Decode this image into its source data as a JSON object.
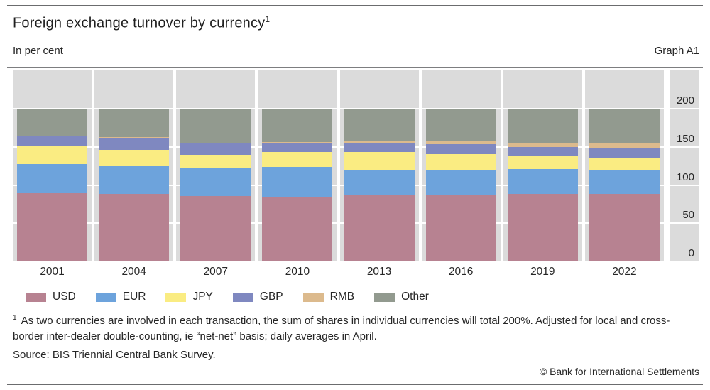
{
  "header": {
    "title": "Foreign exchange turnover by currency",
    "title_sup": "1",
    "subtitle": "In per cent",
    "graph_label": "Graph A1"
  },
  "chart_data": {
    "type": "bar",
    "stacked": true,
    "title": "Foreign exchange turnover by currency",
    "unit": "In per cent",
    "categories": [
      "2001",
      "2004",
      "2007",
      "2010",
      "2013",
      "2016",
      "2019",
      "2022"
    ],
    "series": [
      {
        "name": "USD",
        "color": "#b78291",
        "values": [
          89.9,
          88.0,
          85.6,
          84.9,
          87.0,
          87.6,
          88.3,
          88.5
        ]
      },
      {
        "name": "EUR",
        "color": "#6da3dc",
        "values": [
          37.9,
          37.4,
          37.0,
          39.0,
          33.4,
          31.4,
          32.3,
          30.5
        ]
      },
      {
        "name": "JPY",
        "color": "#faec82",
        "values": [
          23.5,
          20.8,
          17.2,
          19.0,
          23.0,
          21.6,
          16.8,
          16.7
        ]
      },
      {
        "name": "GBP",
        "color": "#7f88c0",
        "values": [
          13.0,
          16.5,
          14.9,
          12.9,
          11.8,
          12.8,
          12.8,
          12.9
        ]
      },
      {
        "name": "RMB",
        "color": "#dcba8d",
        "values": [
          0.0,
          0.1,
          0.5,
          0.9,
          2.2,
          4.0,
          4.3,
          7.0
        ]
      },
      {
        "name": "Other",
        "color": "#929a8f",
        "values": [
          35.7,
          37.2,
          44.8,
          43.3,
          42.6,
          42.6,
          45.5,
          44.4
        ]
      }
    ],
    "yticks": [
      0,
      50,
      100,
      150,
      200
    ],
    "ylim": [
      0,
      251
    ],
    "xlabel": "",
    "ylabel": "",
    "grid": true,
    "legend_position": "bottom",
    "plot_background": "#dbdbdb",
    "gridline_color": "#ffffff"
  },
  "footnote": {
    "sup": "1",
    "text": "As two currencies are involved in each transaction, the sum of shares in individual currencies will total 200%. Adjusted for local and cross-border inter-dealer double-counting, ie “net-net” basis; daily averages in April."
  },
  "source": "Source: BIS Triennial Central Bank Survey.",
  "copyright": "© Bank for International Settlements"
}
